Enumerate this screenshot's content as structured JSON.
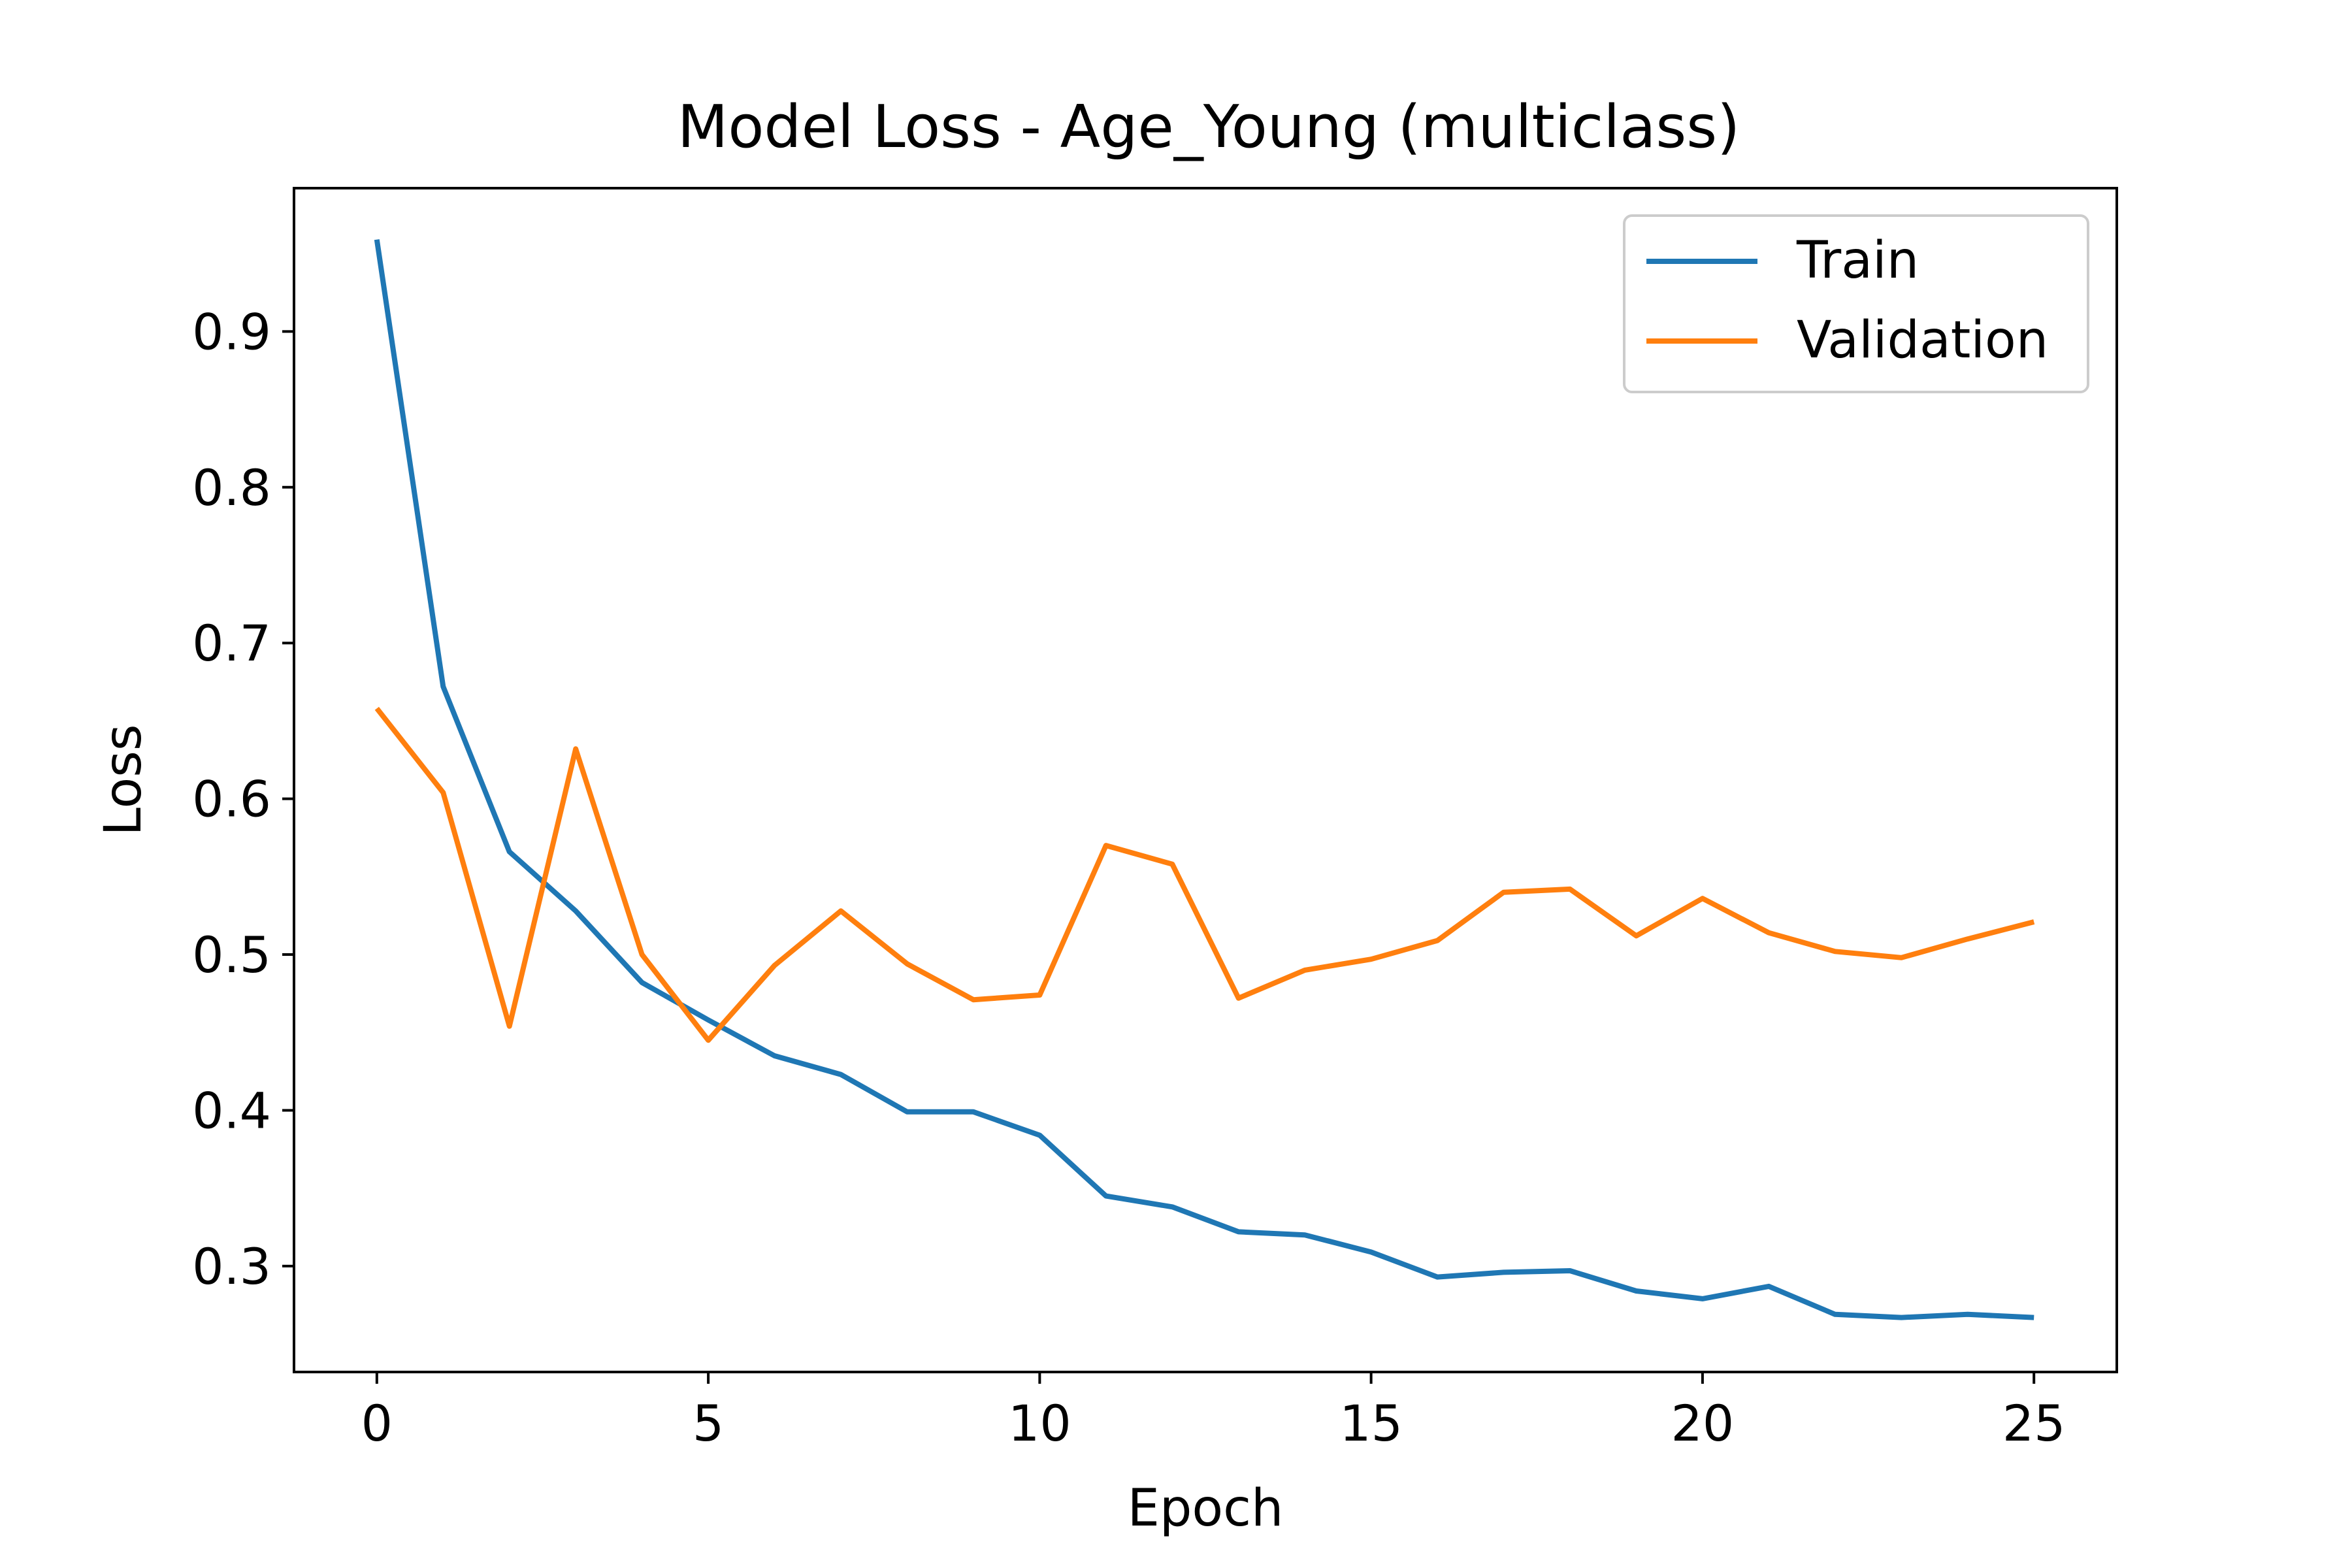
{
  "chart_data": {
    "type": "line",
    "title": "Model Loss - Age_Young (multiclass)",
    "xlabel": "Epoch",
    "ylabel": "Loss",
    "xlim": [
      -1.25,
      26.25
    ],
    "ylim": [
      0.232,
      0.992
    ],
    "xticks": [
      0,
      5,
      10,
      15,
      20,
      25
    ],
    "yticks": [
      0.3,
      0.4,
      0.5,
      0.6,
      0.7,
      0.8,
      0.9
    ],
    "grid": false,
    "legend_position": "top-right",
    "series": [
      {
        "name": "Train",
        "color": "#1f77b4",
        "x": [
          0,
          1,
          2,
          3,
          4,
          5,
          6,
          7,
          8,
          9,
          10,
          11,
          12,
          13,
          14,
          15,
          16,
          17,
          18,
          19,
          20,
          21,
          22,
          23,
          24,
          25
        ],
        "values": [
          0.959,
          0.672,
          0.566,
          0.528,
          0.482,
          0.458,
          0.435,
          0.423,
          0.399,
          0.399,
          0.384,
          0.345,
          0.338,
          0.322,
          0.32,
          0.309,
          0.293,
          0.296,
          0.297,
          0.284,
          0.279,
          0.287,
          0.269,
          0.267,
          0.269,
          0.267
        ]
      },
      {
        "name": "Validation",
        "color": "#ff7f0e",
        "x": [
          0,
          1,
          2,
          3,
          4,
          5,
          6,
          7,
          8,
          9,
          10,
          11,
          12,
          13,
          14,
          15,
          16,
          17,
          18,
          19,
          20,
          21,
          22,
          23,
          24,
          25
        ],
        "values": [
          0.658,
          0.604,
          0.454,
          0.632,
          0.5,
          0.445,
          0.493,
          0.528,
          0.494,
          0.471,
          0.474,
          0.57,
          0.558,
          0.472,
          0.49,
          0.497,
          0.509,
          0.54,
          0.542,
          0.512,
          0.536,
          0.514,
          0.502,
          0.498,
          0.51,
          0.521
        ]
      }
    ]
  }
}
